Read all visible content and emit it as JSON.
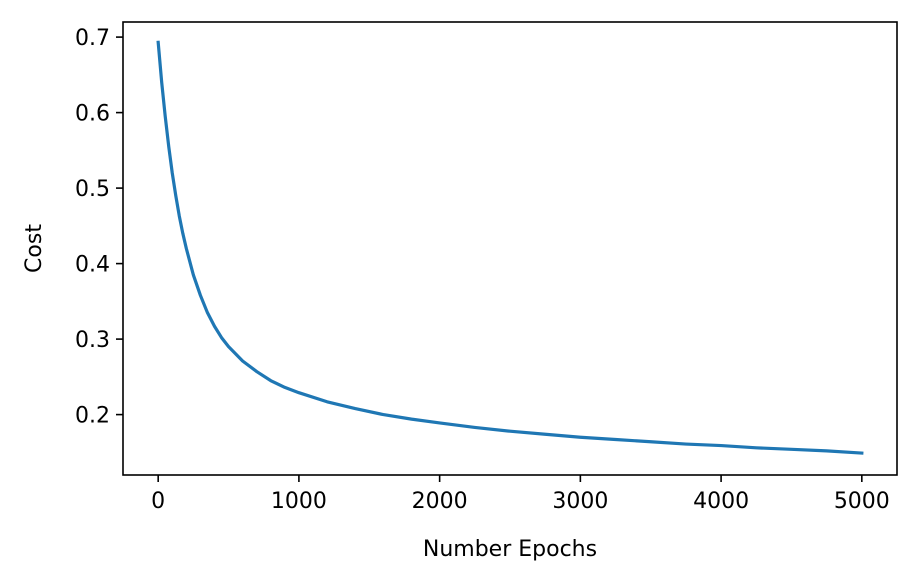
{
  "chart_data": {
    "type": "line",
    "title": "",
    "xlabel": "Number Epochs",
    "ylabel": "Cost",
    "xlim": [
      -250,
      5250
    ],
    "ylim": [
      0.12,
      0.72
    ],
    "xticks": [
      0,
      1000,
      2000,
      3000,
      4000,
      5000
    ],
    "xtick_labels": [
      "0",
      "1000",
      "2000",
      "3000",
      "4000",
      "5000"
    ],
    "yticks": [
      0.2,
      0.3,
      0.4,
      0.5,
      0.6,
      0.7
    ],
    "ytick_labels": [
      "0.2",
      "0.3",
      "0.4",
      "0.5",
      "0.6",
      "0.7"
    ],
    "grid": false,
    "legend": false,
    "series": [
      {
        "color": "#1f77b4",
        "x": [
          0,
          25,
          50,
          75,
          100,
          125,
          150,
          175,
          200,
          250,
          300,
          350,
          400,
          450,
          500,
          600,
          700,
          800,
          900,
          1000,
          1200,
          1400,
          1600,
          1800,
          2000,
          2250,
          2500,
          2750,
          3000,
          3250,
          3500,
          3750,
          4000,
          4250,
          4500,
          4750,
          5000
        ],
        "y": [
          0.693,
          0.64,
          0.595,
          0.555,
          0.52,
          0.49,
          0.463,
          0.44,
          0.42,
          0.385,
          0.358,
          0.335,
          0.317,
          0.302,
          0.29,
          0.271,
          0.257,
          0.245,
          0.236,
          0.229,
          0.217,
          0.208,
          0.2,
          0.194,
          0.189,
          0.183,
          0.178,
          0.174,
          0.17,
          0.167,
          0.164,
          0.161,
          0.159,
          0.156,
          0.154,
          0.152,
          0.149
        ]
      }
    ]
  }
}
